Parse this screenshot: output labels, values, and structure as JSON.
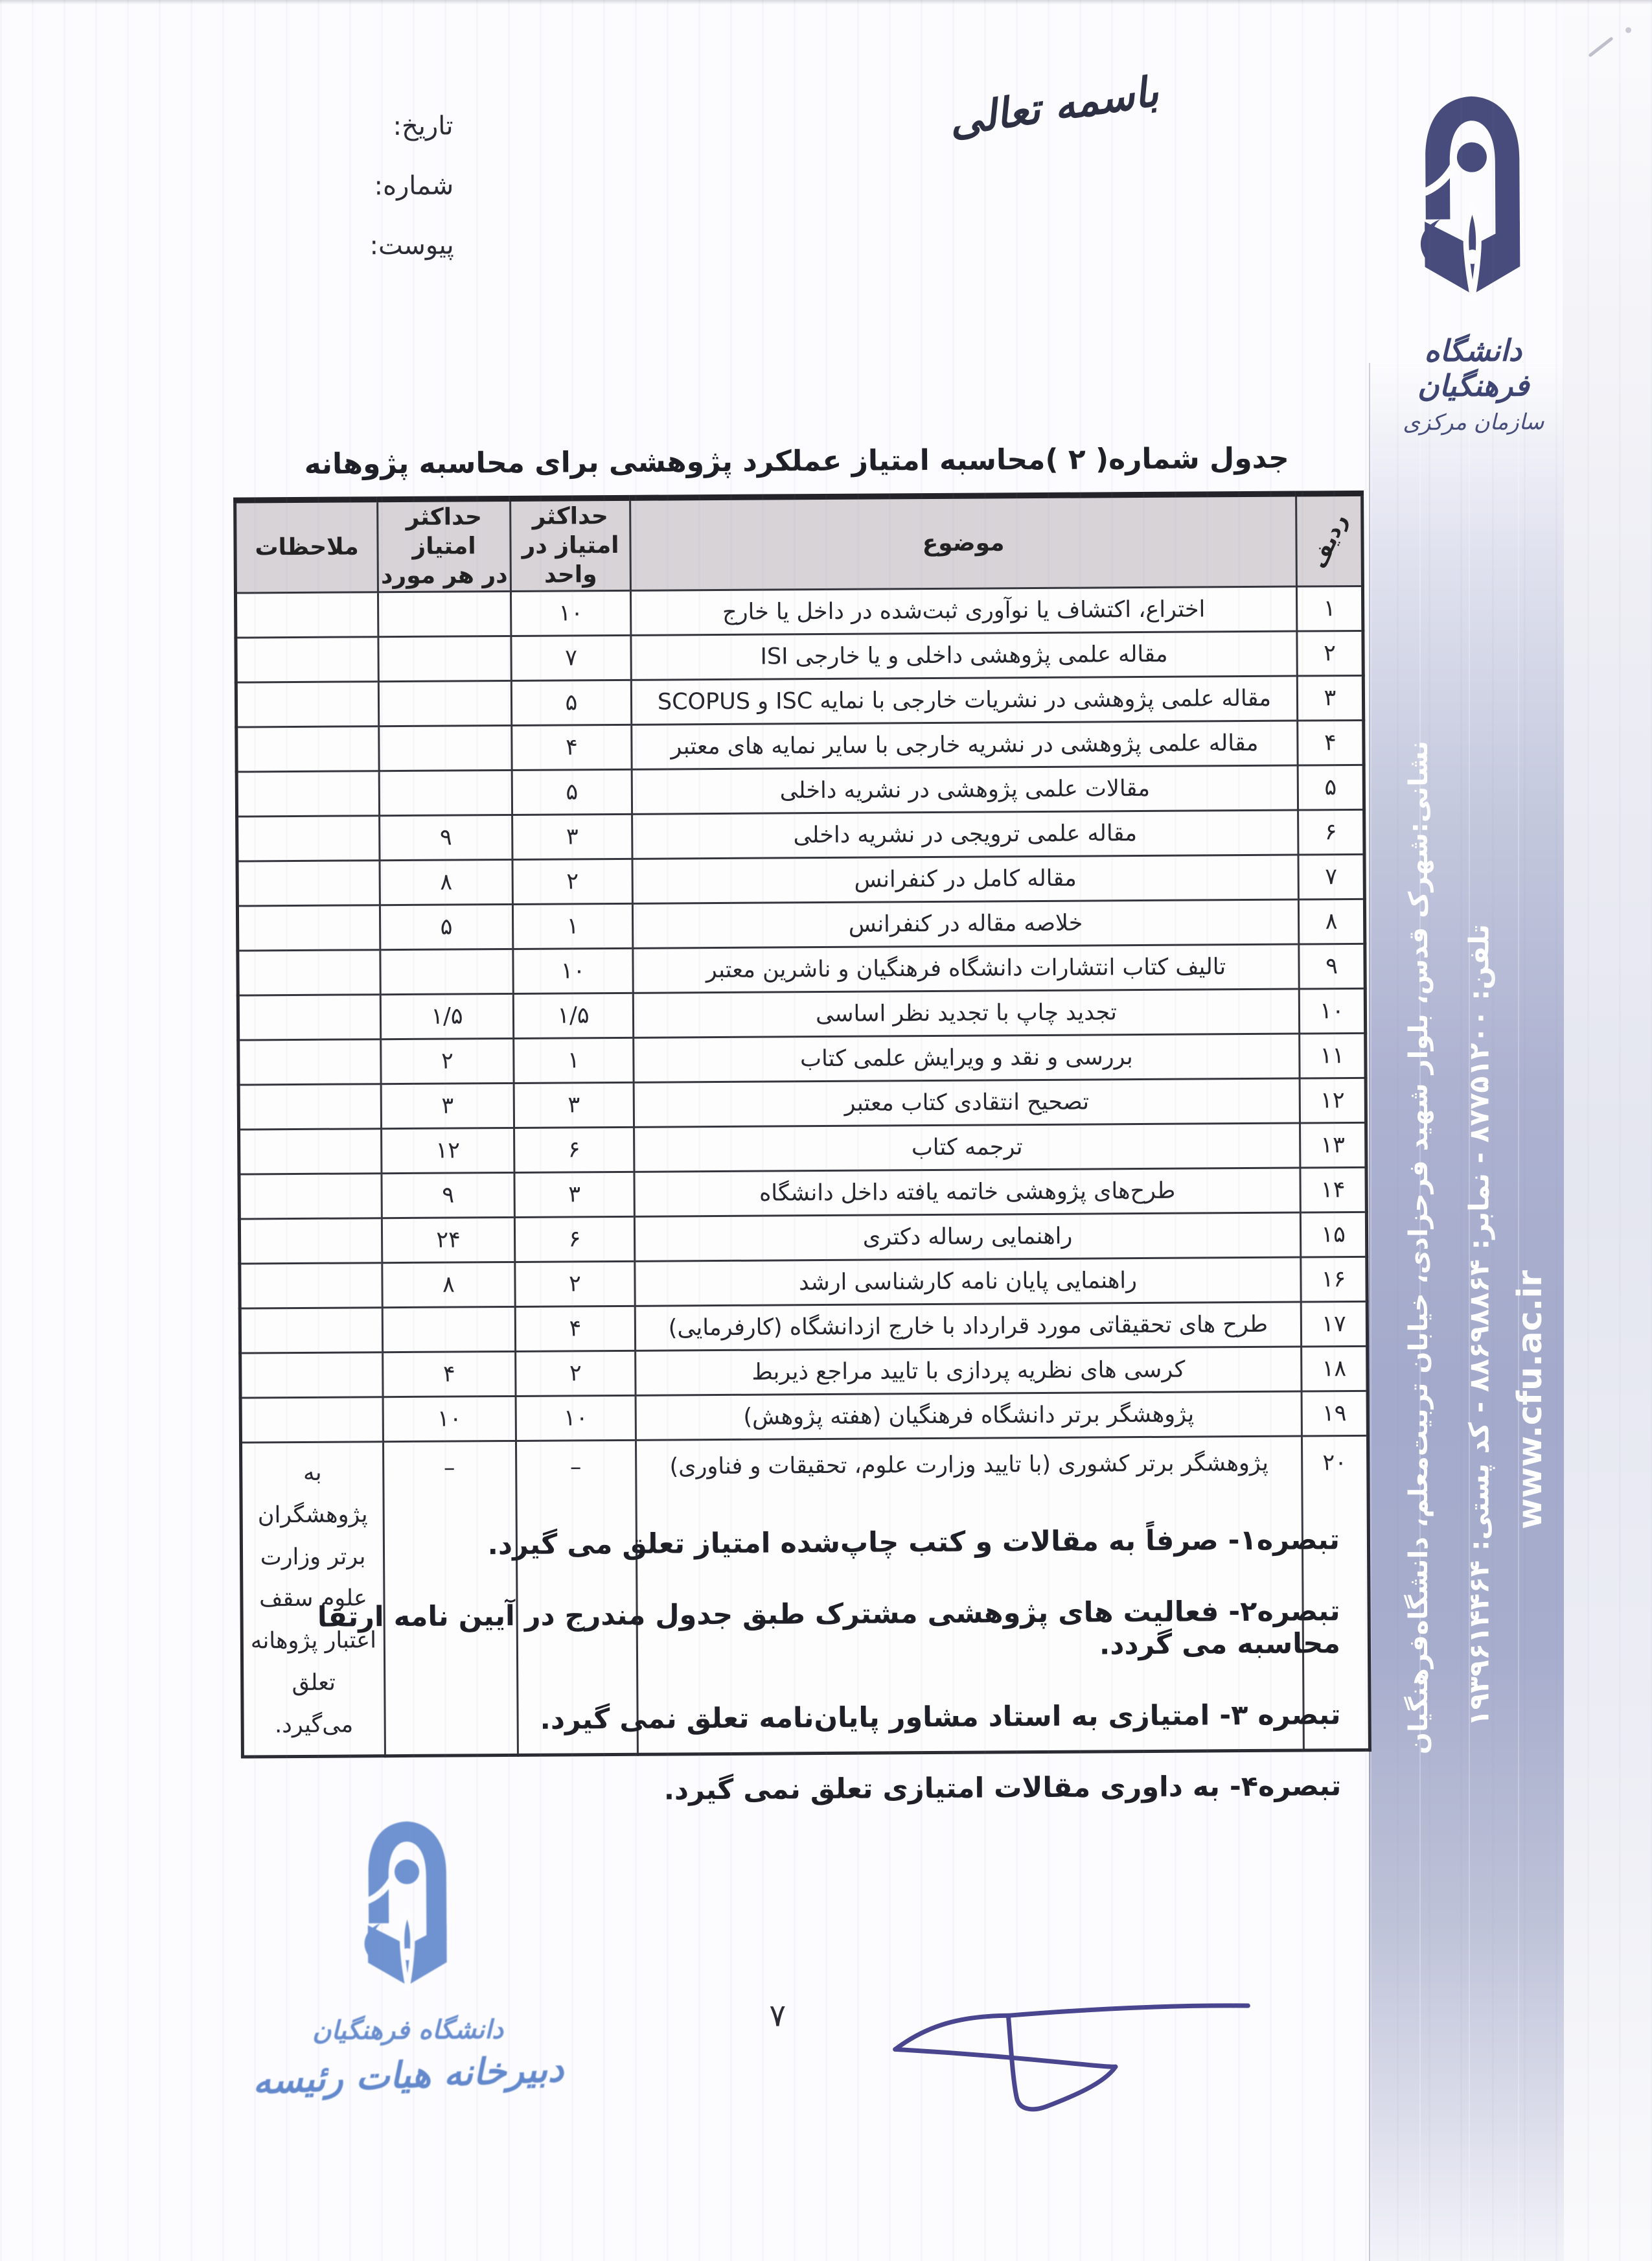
{
  "header": {
    "besmele": "باسمه تعالی",
    "date_label": "تاریخ:",
    "number_label": "شماره:",
    "attachment_label": "پیوست:"
  },
  "logo": {
    "university_name": "دانشگاه فرهنگیان",
    "org_name": "سازمان مرکزی"
  },
  "title": "جدول شماره( ۲ )محاسبه امتیاز عملکرد پژوهشی برای محاسبه پژوهانه",
  "table": {
    "headers": {
      "row": "ردیف",
      "subject": "موضوع",
      "max_per_unit": "حداکثر\nامتیاز در\nواحد",
      "max_per_case": "حداکثر امتیاز\nدر هر مورد",
      "notes": "ملاحظات"
    },
    "rows": [
      {
        "no": "۱",
        "subject": "اختراع، اکتشاف یا نوآوری ثبت‌شده در داخل یا خارج",
        "unit": "۱۰",
        "case": "",
        "notes": ""
      },
      {
        "no": "۲",
        "subject": "مقاله علمی پژوهشی  داخلی و یا خارجی ISI",
        "unit": "۷",
        "case": "",
        "notes": ""
      },
      {
        "no": "۳",
        "subject": "مقاله علمی پژوهشی در نشریات خارجی با نمایه ISC و SCOPUS",
        "unit": "۵",
        "case": "",
        "notes": ""
      },
      {
        "no": "۴",
        "subject": "مقاله علمی پژوهشی در نشریه خارجی با سایر نمایه های معتبر",
        "unit": "۴",
        "case": "",
        "notes": ""
      },
      {
        "no": "۵",
        "subject": "مقالات علمی پژوهشی در نشریه داخلی",
        "unit": "۵",
        "case": "",
        "notes": ""
      },
      {
        "no": "۶",
        "subject": "مقاله علمی ترویجی در نشریه داخلی",
        "unit": "۳",
        "case": "۹",
        "notes": ""
      },
      {
        "no": "۷",
        "subject": "مقاله کامل در کنفرانس",
        "unit": "۲",
        "case": "۸",
        "notes": ""
      },
      {
        "no": "۸",
        "subject": "خلاصه مقاله در کنفرانس",
        "unit": "۱",
        "case": "۵",
        "notes": ""
      },
      {
        "no": "۹",
        "subject": "تالیف کتاب انتشارات دانشگاه فرهنگیان و ناشرین معتبر",
        "unit": "۱۰",
        "case": "",
        "notes": ""
      },
      {
        "no": "۱۰",
        "subject": "تجدید چاپ با تجدید نظر اساسی",
        "unit": "۱/۵",
        "case": "۱/۵",
        "notes": ""
      },
      {
        "no": "۱۱",
        "subject": "بررسی و نقد و ویرایش علمی کتاب",
        "unit": "۱",
        "case": "۲",
        "notes": ""
      },
      {
        "no": "۱۲",
        "subject": "تصحیح انتقادی کتاب معتبر",
        "unit": "۳",
        "case": "۳",
        "notes": ""
      },
      {
        "no": "۱۳",
        "subject": "ترجمه کتاب",
        "unit": "۶",
        "case": "۱۲",
        "notes": ""
      },
      {
        "no": "۱۴",
        "subject": "طرح‌های پژوهشی خاتمه یافته داخل دانشگاه",
        "unit": "۳",
        "case": "۹",
        "notes": ""
      },
      {
        "no": "۱۵",
        "subject": "راهنمایی رساله دکتری",
        "unit": "۶",
        "case": "۲۴",
        "notes": ""
      },
      {
        "no": "۱۶",
        "subject": "راهنمایی پایان نامه کارشناسی ارشد",
        "unit": "۲",
        "case": "۸",
        "notes": ""
      },
      {
        "no": "۱۷",
        "subject": "طرح های تحقیقاتی مورد قرارداد با خارج ازدانشگاه (کارفرمایی)",
        "unit": "۴",
        "case": "",
        "notes": ""
      },
      {
        "no": "۱۸",
        "subject": "کرسی های نظریه پردازی با تایید مراجع ذیربط",
        "unit": "۲",
        "case": "۴",
        "notes": ""
      },
      {
        "no": "۱۹",
        "subject": "پژوهشگر برتر دانشگاه فرهنگیان (هفته پژوهش)",
        "unit": "۱۰",
        "case": "۱۰",
        "notes": ""
      },
      {
        "no": "۲۰",
        "subject": "پژوهشگر برتر کشوری (با تایید وزارت علوم، تحقیقات و فناوری)",
        "unit": "–",
        "case": "–",
        "notes": "به پژوهشگران برتر وزارت علوم سقف اعتبار پژوهانه تعلق می‌گیرد."
      }
    ]
  },
  "footnotes": [
    "تبصره۱- صرفاً به مقالات و کتب چاپ‌شده امتیاز تعلق می گیرد.",
    "تبصره۲- فعالیت های پژوهشی مشترک طبق جدول مندرج در آیین نامه ارتقا محاسبه می گردد.",
    "تبصره ۳- امتیازی به استاد مشاور پایان‌نامه تعلق نمی گیرد.",
    "تبصره۴- به داوری مقالات امتیازی تعلق نمی گیرد."
  ],
  "stamp": {
    "university_name": "دانشگاه فرهنگیان",
    "secretariat": "دبیرخانه هیات رئیسه"
  },
  "sidebar": {
    "address": "نشانی:شهرک قدس، بلوار شهید فرحزادی، خیابان تربیت‌معلم، دانشگاه‌فرهنگیان",
    "phone": "تلفن: ۸۷۷۵۱۲۰۰  -  نمابر: ۸۸۶۹۸۸۶۴  -  کد پستی: ۱۹۳۹۶۱۴۴۶۴",
    "website": "www.cfu.ac.ir"
  },
  "page_number": "۷",
  "colors": {
    "ink": "#26262e",
    "logo_navy": "#474c7c",
    "stamp_blue": "#5f86cb",
    "signature_ink": "#49458f",
    "band_lavender": "#a6abcd",
    "header_row_bg": "#d8d3d7"
  }
}
